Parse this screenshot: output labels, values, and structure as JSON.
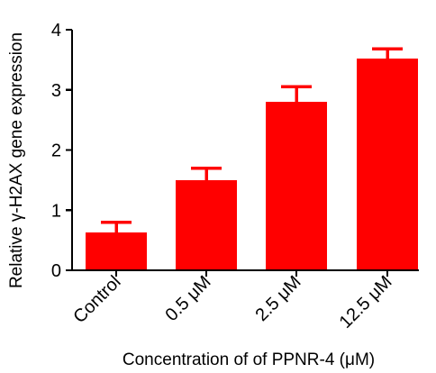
{
  "chart_data": {
    "type": "bar",
    "categories": [
      "Control",
      "0.5 μM",
      "2.5 μM",
      "12.5 μM"
    ],
    "values": [
      0.63,
      1.5,
      2.8,
      3.52
    ],
    "error": [
      0.17,
      0.2,
      0.25,
      0.16
    ],
    "title": "",
    "xlabel": "Concentration of of PPNR-4 (μM)",
    "ylabel": "Relative γ-H2AX gene expression",
    "ylim": [
      0,
      4
    ],
    "yticks": [
      "0",
      "1",
      "2",
      "3",
      "4"
    ],
    "grid": false,
    "legend": "none",
    "bar_color": "#ff0000",
    "axis_color": "#000000"
  }
}
